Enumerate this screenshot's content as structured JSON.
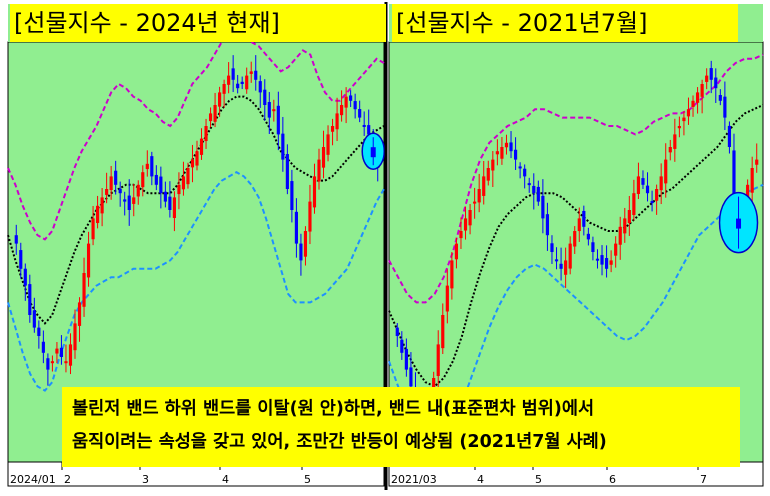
{
  "colors": {
    "chart_bg": "#90ee90",
    "up_candle": "#ff0000",
    "down_candle": "#0000ff",
    "upper_band": "#cc00cc",
    "lower_band": "#1e90ff",
    "middle_line": "#000000",
    "highlight_circle": "#00e5ff",
    "banner": "#ffff00"
  },
  "panels": [
    {
      "title": "[선물지수 - 2024년 현재]",
      "x_ticks": [
        "2024/01",
        "2",
        "3",
        "4",
        "5"
      ]
    },
    {
      "title": "[선물지수 - 2021년7월]",
      "x_ticks": [
        "2021/03",
        "4",
        "5",
        "6",
        "7"
      ]
    }
  ],
  "caption": {
    "line1": "볼린저 밴드 하위 밴드를 이탈(원 안)하면, 밴드 내(표준편차 범위)에서",
    "line2": "움직이려는 속성을 갖고 있어, 조만간 반등이 예상됨 (2021년7월 사례)"
  },
  "chart_data": [
    {
      "type": "candlestick",
      "title": "[선물지수 - 2024년 현재]",
      "x_ticks": [
        "2024/01",
        "2",
        "3",
        "4",
        "5"
      ],
      "close": [
        52,
        46,
        42,
        35,
        32,
        30,
        26,
        22,
        24,
        27,
        25,
        24,
        28,
        33,
        38,
        45,
        52,
        58,
        61,
        63,
        65,
        68,
        66,
        64,
        62,
        60,
        63,
        66,
        69,
        71,
        68,
        66,
        64,
        62,
        60,
        63,
        66,
        68,
        70,
        72,
        74,
        77,
        80,
        83,
        85,
        88,
        90,
        92,
        91,
        89,
        90,
        92,
        93,
        91,
        88,
        85,
        82,
        84,
        78,
        72,
        65,
        60,
        52,
        48,
        55,
        62,
        68,
        72,
        75,
        78,
        80,
        83,
        85,
        87,
        86,
        84,
        82,
        80,
        78,
        74,
        70
      ],
      "upper_band": [
        70,
        66,
        61,
        57,
        54,
        53,
        55,
        60,
        65,
        70,
        74,
        77,
        80,
        84,
        88,
        90,
        89,
        87,
        86,
        84,
        83,
        81,
        80,
        82,
        86,
        90,
        92,
        94,
        97,
        100,
        103,
        103,
        102,
        100,
        99,
        97,
        95,
        93,
        94,
        96,
        98,
        97,
        92,
        88,
        86,
        86,
        88,
        90,
        92,
        94,
        96,
        95
      ],
      "middle_line": [
        54,
        48,
        43,
        38,
        35,
        33,
        35,
        40,
        45,
        50,
        54,
        57,
        60,
        62,
        64,
        65,
        66,
        66,
        65,
        64,
        64,
        64,
        64,
        66,
        69,
        72,
        75,
        78,
        81,
        84,
        86,
        87,
        87,
        86,
        84,
        81,
        78,
        74,
        72,
        70,
        69,
        68,
        67,
        67,
        68,
        70,
        72,
        74,
        76,
        78,
        79,
        80
      ],
      "lower_band": [
        38,
        32,
        26,
        21,
        18,
        17,
        19,
        25,
        30,
        35,
        38,
        40,
        42,
        43,
        44,
        44,
        45,
        46,
        46,
        46,
        46,
        47,
        48,
        50,
        53,
        56,
        59,
        62,
        65,
        67,
        68,
        69,
        68,
        66,
        63,
        58,
        52,
        46,
        40,
        38,
        38,
        38,
        39,
        40,
        42,
        44,
        46,
        50,
        54,
        58,
        62,
        65
      ],
      "ylim": [
        0,
        100
      ],
      "highlight": {
        "label": "lower-band breach",
        "at_bar": 79
      }
    },
    {
      "type": "candlestick",
      "title": "[선물지수 - 2021년7월]",
      "x_ticks": [
        "2021/03",
        "4",
        "5",
        "6",
        "7"
      ],
      "close": [
        30,
        26,
        22,
        18,
        15,
        12,
        10,
        14,
        20,
        28,
        35,
        42,
        48,
        52,
        55,
        58,
        60,
        62,
        65,
        68,
        70,
        72,
        74,
        75,
        76,
        74,
        72,
        70,
        68,
        66,
        64,
        62,
        58,
        54,
        50,
        48,
        46,
        48,
        52,
        55,
        58,
        56,
        53,
        50,
        48,
        47,
        46,
        48,
        52,
        56,
        58,
        60,
        64,
        68,
        66,
        64,
        62,
        65,
        68,
        72,
        75,
        78,
        80,
        82,
        84,
        86,
        88,
        90,
        92,
        91,
        89,
        86,
        82,
        75,
        62,
        57,
        60,
        66,
        70,
        72
      ],
      "upper_band": [
        48,
        44,
        40,
        38,
        38,
        40,
        44,
        50,
        58,
        66,
        72,
        76,
        78,
        80,
        81,
        82,
        84,
        84,
        83,
        82,
        82,
        82,
        82,
        81,
        80,
        80,
        79,
        78,
        79,
        81,
        82,
        83,
        83,
        84,
        86,
        88,
        90,
        93,
        95,
        96,
        96,
        97
      ],
      "middle_line": [
        36,
        31,
        26,
        22,
        19,
        18,
        20,
        24,
        30,
        38,
        45,
        51,
        56,
        59,
        61,
        63,
        64,
        64,
        64,
        63,
        61,
        59,
        57,
        56,
        55,
        55,
        56,
        58,
        60,
        62,
        64,
        65,
        67,
        69,
        71,
        73,
        75,
        78,
        81,
        83,
        84,
        85
      ],
      "lower_band": [
        24,
        18,
        13,
        9,
        6,
        5,
        6,
        9,
        14,
        20,
        26,
        32,
        37,
        41,
        44,
        46,
        47,
        46,
        44,
        42,
        40,
        38,
        36,
        34,
        32,
        30,
        29,
        30,
        32,
        35,
        38,
        42,
        46,
        50,
        54,
        56,
        58,
        60,
        62,
        64,
        65,
        66
      ],
      "ylim": [
        0,
        100
      ],
      "highlight": {
        "label": "lower-band breach",
        "at_bar": 75
      }
    }
  ]
}
